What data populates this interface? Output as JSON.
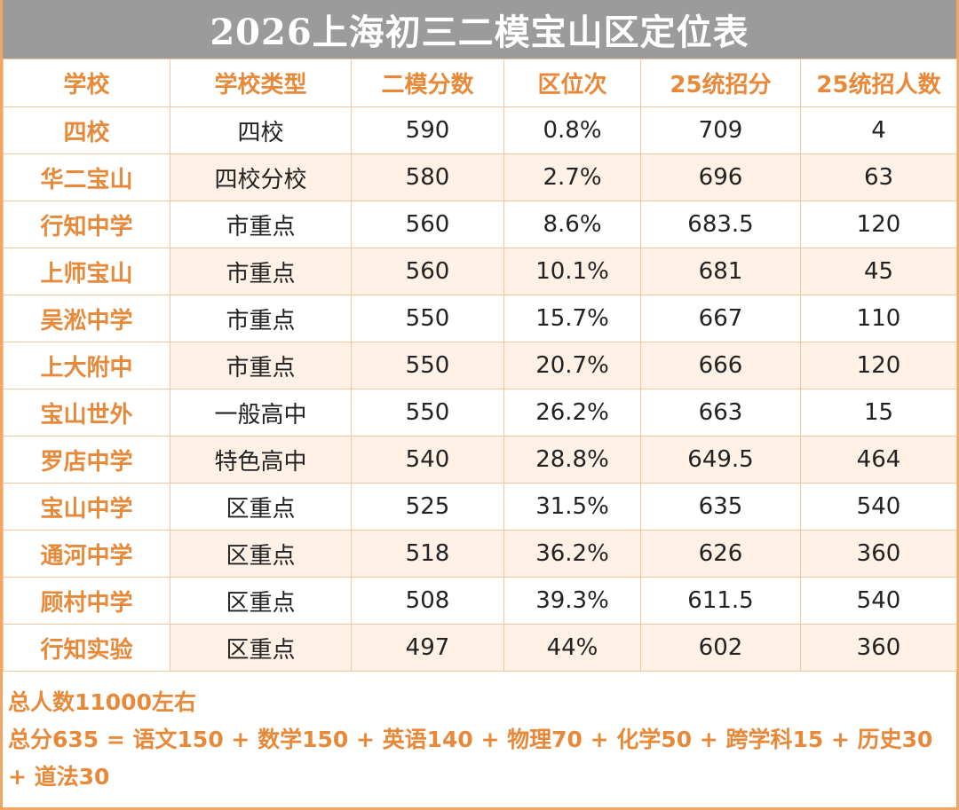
{
  "title": "2026上海初三二模宝山区定位表",
  "headers": [
    "学校",
    "学校类型",
    "二模分数",
    "区位次",
    "25统招分",
    "25统招人数"
  ],
  "rows": [
    [
      "四校",
      "四校",
      "590",
      "0.8%",
      "709",
      "4"
    ],
    [
      "华二宝山",
      "四校分校",
      "580",
      "2.7%",
      "696",
      "63"
    ],
    [
      "行知中学",
      "市重点",
      "560",
      "8.6%",
      "683.5",
      "120"
    ],
    [
      "上师宝山",
      "市重点",
      "560",
      "10.1%",
      "681",
      "45"
    ],
    [
      "吴淞中学",
      "市重点",
      "550",
      "15.7%",
      "667",
      "110"
    ],
    [
      "上大附中",
      "市重点",
      "550",
      "20.7%",
      "666",
      "120"
    ],
    [
      "宝山世外",
      "一般高中",
      "550",
      "26.2%",
      "663",
      "15"
    ],
    [
      "罗店中学",
      "特色高中",
      "540",
      "28.8%",
      "649.5",
      "464"
    ],
    [
      "宝山中学",
      "区重点",
      "525",
      "31.5%",
      "635",
      "540"
    ],
    [
      "通河中学",
      "区重点",
      "518",
      "36.2%",
      "626",
      "360"
    ],
    [
      "顾村中学",
      "区重点",
      "508",
      "39.3%",
      "611.5",
      "540"
    ],
    [
      "行知实验",
      "区重点",
      "497",
      "44%",
      "602",
      "360"
    ]
  ],
  "notes": {
    "total": "总人数11000左右",
    "formula": "总分635 = 语文150 + 数学150 + 英语140 + 物理70 + 化学50 + 跨学科15 + 历史30 + 道法30"
  },
  "colors": {
    "accent": "#E8893A",
    "title_bg": "#9B9B9B",
    "row_shade": "#FFF1E6",
    "border": "#F6C79E"
  }
}
